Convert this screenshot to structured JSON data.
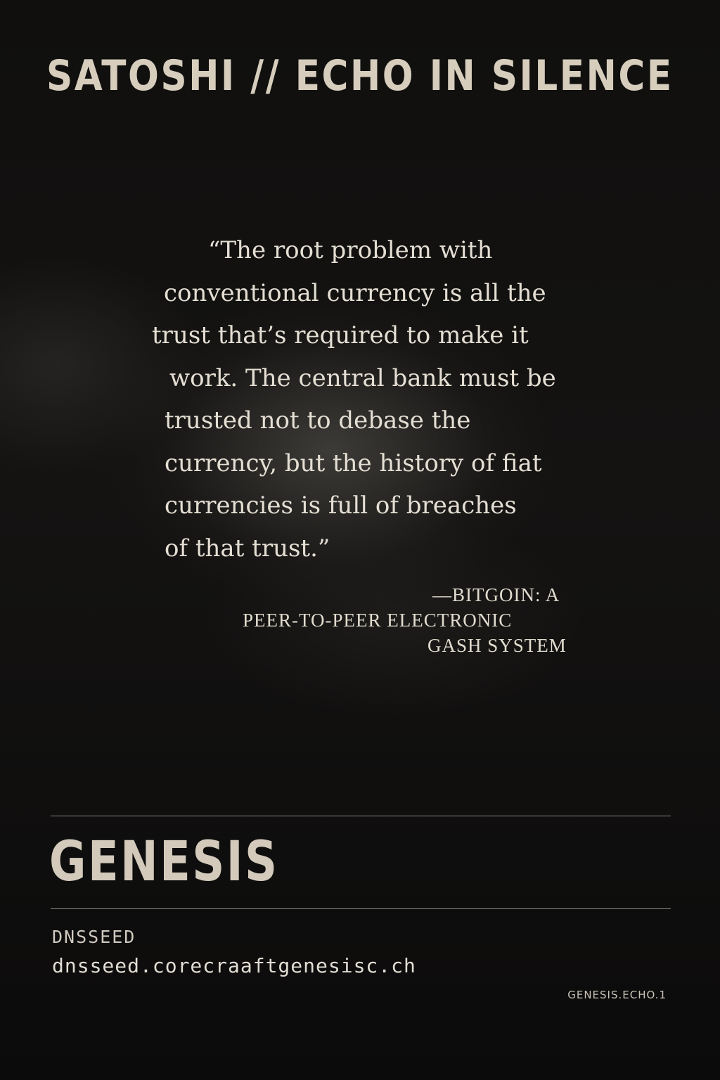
{
  "header": {
    "title": "SATOSHI // ECHO IN SILENCE"
  },
  "quote": {
    "lines": [
      "“The root problem with",
      "conventional currency is all the",
      "trust that’s required to make it",
      "work. The central bank must be",
      "trusted not to debase the",
      "currency, but the history of  fiat",
      "currencies is full of breaches",
      "of that trust.”"
    ],
    "attribution": [
      "—BITGOIN: A",
      "PEER-TO-PEER ELECTRONIC",
      "GASH SYSTEM"
    ]
  },
  "section": {
    "title": "GENESIS"
  },
  "dns": {
    "label": "DNSSEED",
    "value": "dnsseed.corecraaftgenesisc.ch"
  },
  "footer": {
    "code": "GENESIS.ECHO.1"
  }
}
